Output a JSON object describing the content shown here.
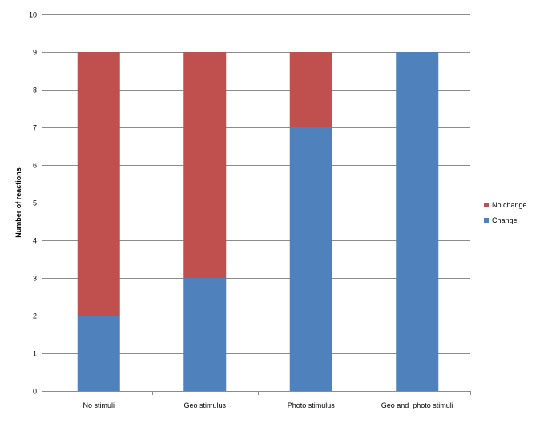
{
  "chart_data": {
    "type": "bar",
    "stacked": true,
    "categories": [
      "No stimuli",
      "Geo stimulus",
      "Photo stimulus",
      "Geo and  photo stimuli"
    ],
    "series": [
      {
        "name": "Change",
        "values": [
          2,
          3,
          7,
          9
        ],
        "color": "#4F81BD"
      },
      {
        "name": "No change",
        "values": [
          7,
          6,
          2,
          0
        ],
        "color": "#C0504D"
      }
    ],
    "title": "",
    "xlabel": "",
    "ylabel": "Number of reactions",
    "ylim": [
      0,
      10
    ],
    "yticks": [
      "0",
      "1",
      "2",
      "3",
      "4",
      "5",
      "6",
      "7",
      "8",
      "9",
      "10"
    ],
    "grid": true,
    "legend": {
      "placement": "right",
      "order": [
        "No change",
        "Change"
      ]
    }
  }
}
